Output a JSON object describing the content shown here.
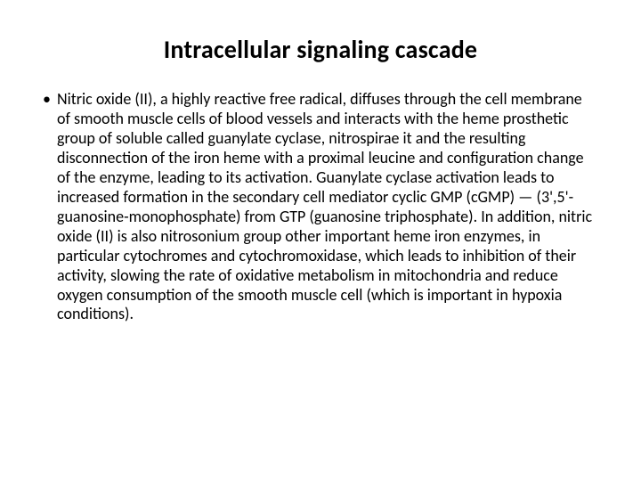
{
  "slide": {
    "title": "Intracellular signaling cascade",
    "bullets": [
      "Nitric oxide (II), a highly reactive free radical, diffuses through the cell membrane of smooth muscle cells of blood vessels and interacts with the heme prosthetic group of soluble called guanylate cyclase, nitrospirae it and the resulting disconnection of the iron heme with a proximal leucine and configuration change of the enzyme, leading to its activation. Guanylate cyclase activation leads to increased formation in the secondary cell mediator cyclic GMP (cGMP) — (3',5'-guanosine-monophosphate) from GTP (guanosine triphosphate). In addition, nitric oxide (II) is also nitrosonium group other important heme iron enzymes, in particular cytochromes and cytochromoxidase, which leads to inhibition of their activity, slowing the rate of oxidative metabolism in mitochondria and reduce oxygen consumption of the smooth muscle cell (which is important in hypoxia conditions)."
    ]
  }
}
